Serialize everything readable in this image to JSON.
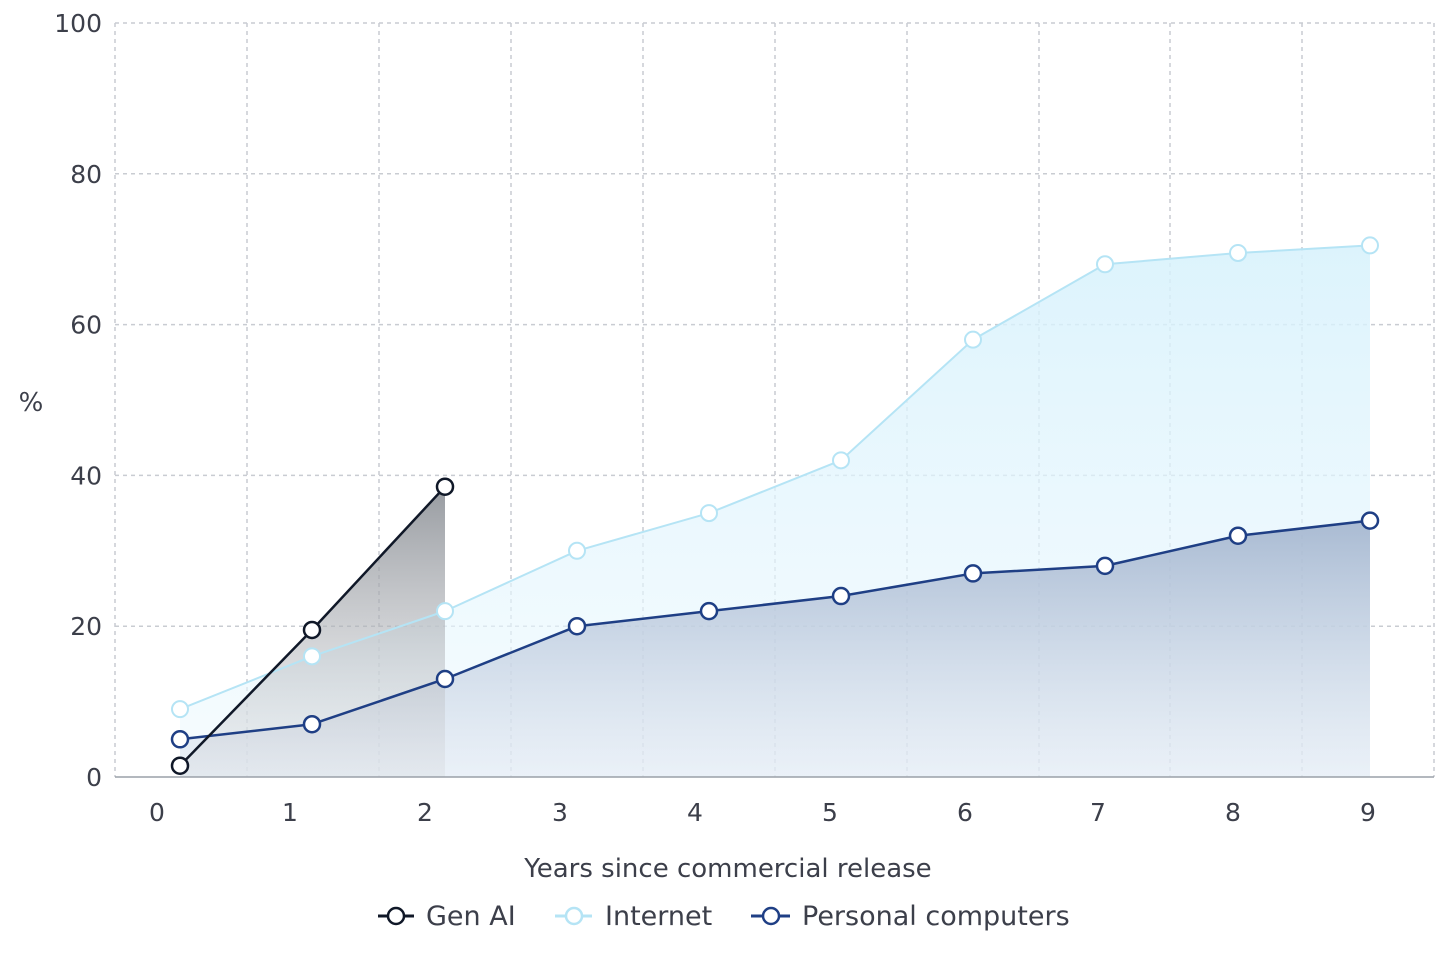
{
  "chart_data": {
    "type": "line",
    "xlabel": "Years since commercial release",
    "ylabel": "%",
    "xlim": [
      0,
      9
    ],
    "ylim": [
      0,
      100
    ],
    "x_ticks": [
      0,
      1,
      2,
      3,
      4,
      5,
      6,
      7,
      8,
      9
    ],
    "y_ticks": [
      0,
      20,
      40,
      60,
      80,
      100
    ],
    "grid": true,
    "legend_position": "bottom-center",
    "series": [
      {
        "name": "Gen AI",
        "color": "#101828",
        "fill": "gray",
        "x": [
          0,
          1,
          2
        ],
        "values": [
          1.5,
          19.5,
          38.5
        ]
      },
      {
        "name": "Internet",
        "color": "#b5e4f5",
        "fill": "light-blue",
        "x": [
          0,
          1,
          2,
          3,
          4,
          5,
          6,
          7,
          8,
          9
        ],
        "values": [
          9,
          16,
          22,
          30,
          35,
          42,
          58,
          68,
          69.5,
          70.5
        ]
      },
      {
        "name": "Personal computers",
        "color": "#1f3f85",
        "fill": "navy",
        "x": [
          0,
          1,
          2,
          3,
          4,
          5,
          6,
          7,
          8,
          9
        ],
        "values": [
          5,
          7,
          13,
          20,
          22,
          24,
          27,
          28,
          32,
          34
        ]
      }
    ]
  }
}
